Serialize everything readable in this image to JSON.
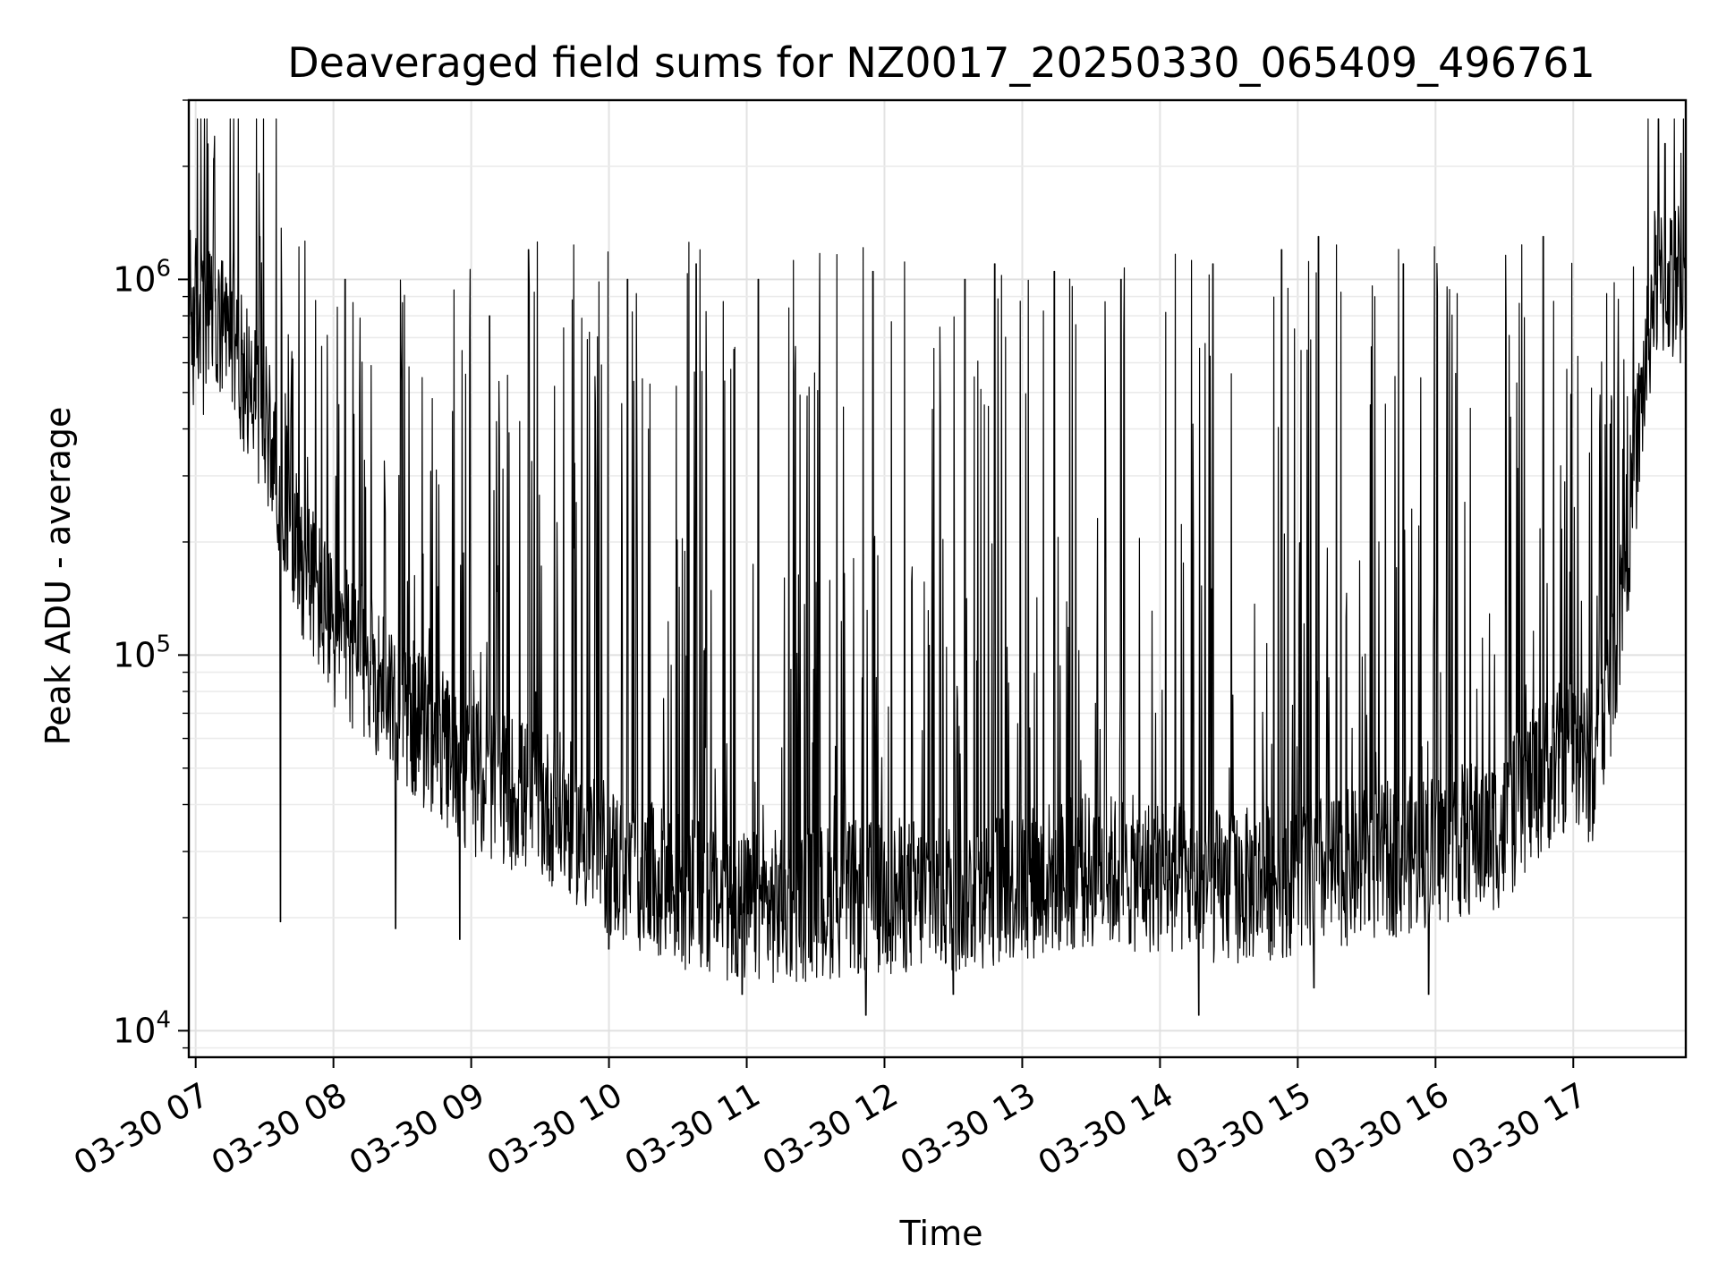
{
  "chart_data": {
    "type": "line",
    "title": "Deaveraged field sums for NZ0017_20250330_065409_496761",
    "xlabel": "Time",
    "ylabel": "Peak ADU - average",
    "yscale": "log",
    "ylim": [
      8500,
      3000000
    ],
    "xlim": [
      "2025-03-30 06:57",
      "2025-03-30 17:49"
    ],
    "grid": true,
    "line_color": "#000000",
    "x_ticks": [
      {
        "time": "2025-03-30 07:00",
        "label": "03-30 07"
      },
      {
        "time": "2025-03-30 08:00",
        "label": "03-30 08"
      },
      {
        "time": "2025-03-30 09:00",
        "label": "03-30 09"
      },
      {
        "time": "2025-03-30 10:00",
        "label": "03-30 10"
      },
      {
        "time": "2025-03-30 11:00",
        "label": "03-30 11"
      },
      {
        "time": "2025-03-30 12:00",
        "label": "03-30 12"
      },
      {
        "time": "2025-03-30 13:00",
        "label": "03-30 13"
      },
      {
        "time": "2025-03-30 14:00",
        "label": "03-30 14"
      },
      {
        "time": "2025-03-30 15:00",
        "label": "03-30 15"
      },
      {
        "time": "2025-03-30 16:00",
        "label": "03-30 16"
      },
      {
        "time": "2025-03-30 17:00",
        "label": "03-30 17"
      }
    ],
    "y_ticks": [
      {
        "value": 10000,
        "base": "10",
        "exp": "4"
      },
      {
        "value": 100000,
        "base": "10",
        "exp": "5"
      },
      {
        "value": 1000000,
        "base": "10",
        "exp": "6"
      }
    ],
    "series": [
      {
        "baseline_envelope": {
          "time": [
            "06:57",
            "07:15",
            "07:30",
            "07:45",
            "08:00",
            "08:20",
            "08:40",
            "09:00",
            "09:20",
            "09:40",
            "10:00",
            "10:20",
            "10:40",
            "11:00",
            "11:30",
            "12:00",
            "12:30",
            "13:00",
            "13:30",
            "14:00",
            "14:30",
            "15:00",
            "15:30",
            "16:00",
            "16:30",
            "16:40",
            "17:00",
            "17:10",
            "17:20",
            "17:35",
            "17:49"
          ],
          "value": [
            900000,
            700000,
            450000,
            200000,
            120000,
            90000,
            65000,
            50000,
            45000,
            40000,
            30000,
            26000,
            24000,
            22000,
            23000,
            24000,
            24000,
            26000,
            28000,
            27000,
            25000,
            27000,
            29000,
            32000,
            36000,
            45000,
            60000,
            50000,
            130000,
            1000000,
            1100000
          ]
        },
        "spikes": [
          {
            "time": "07:08",
            "value": 2100000
          },
          {
            "time": "07:28",
            "value": 1300000
          },
          {
            "time": "08:05",
            "value": 1000000
          },
          {
            "time": "09:08",
            "value": 800000
          },
          {
            "time": "09:25",
            "value": 1200000
          },
          {
            "time": "10:08",
            "value": 1000000
          },
          {
            "time": "10:38",
            "value": 1100000
          },
          {
            "time": "11:05",
            "value": 1000000
          },
          {
            "time": "11:55",
            "value": 1050000
          },
          {
            "time": "12:35",
            "value": 1000000
          },
          {
            "time": "12:48",
            "value": 1100000
          },
          {
            "time": "13:14",
            "value": 1050000
          },
          {
            "time": "13:43",
            "value": 1000000
          },
          {
            "time": "14:23",
            "value": 1100000
          },
          {
            "time": "14:53",
            "value": 1200000
          },
          {
            "time": "15:09",
            "value": 1300000
          },
          {
            "time": "15:46",
            "value": 1100000
          },
          {
            "time": "16:47",
            "value": 1300000
          },
          {
            "time": "17:40",
            "value": 2300000
          }
        ],
        "minima": [
          {
            "time": "07:37",
            "value": 19500
          },
          {
            "time": "08:27",
            "value": 18700
          },
          {
            "time": "08:55",
            "value": 17500
          },
          {
            "time": "10:00",
            "value": 16500
          },
          {
            "time": "10:58",
            "value": 12500
          },
          {
            "time": "11:52",
            "value": 11000
          },
          {
            "time": "12:30",
            "value": 12500
          },
          {
            "time": "14:17",
            "value": 11000
          },
          {
            "time": "15:07",
            "value": 13000
          },
          {
            "time": "15:57",
            "value": 12500
          }
        ]
      }
    ]
  }
}
